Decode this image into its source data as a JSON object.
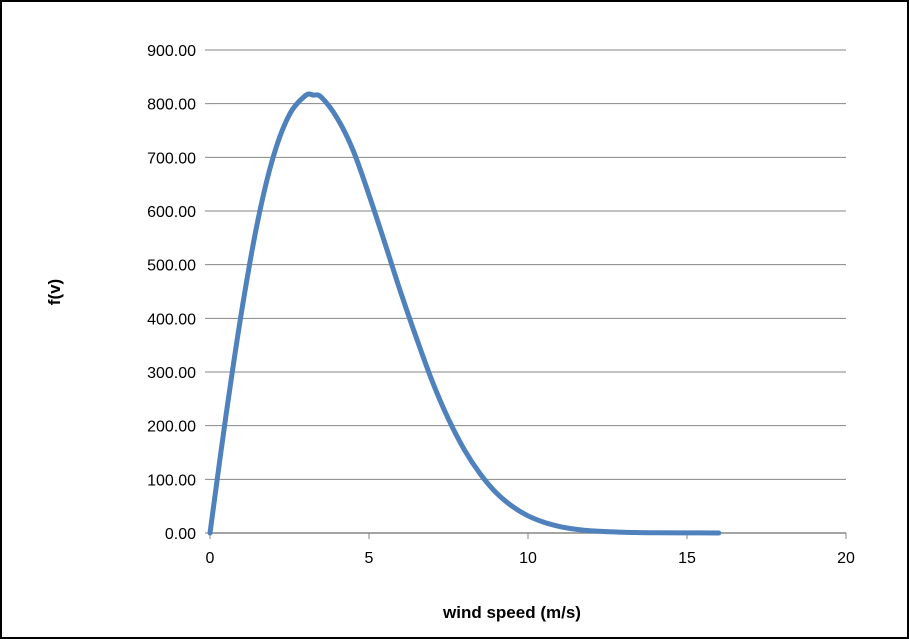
{
  "chart_data": {
    "type": "line",
    "title": "",
    "xlabel": "wind speed (m/s)",
    "ylabel": "f(v)",
    "xlim": [
      0,
      20
    ],
    "ylim": [
      0,
      900
    ],
    "x_ticks": [
      "0",
      "5",
      "10",
      "15",
      "20"
    ],
    "y_ticks": [
      "0.00",
      "100.00",
      "200.00",
      "300.00",
      "400.00",
      "500.00",
      "600.00",
      "700.00",
      "800.00",
      "900.00"
    ],
    "grid": "horizontal",
    "legend": "none",
    "series": [
      {
        "color": "#4f81bd",
        "x": [
          0,
          0.5,
          1,
          1.5,
          2,
          2.5,
          3,
          3.25,
          3.5,
          4,
          4.5,
          5,
          5.5,
          6,
          6.5,
          7,
          7.5,
          8,
          8.5,
          9,
          9.5,
          10,
          10.5,
          11,
          11.5,
          12,
          13,
          14,
          15,
          16
        ],
        "y": [
          0,
          218,
          415,
          581,
          703,
          780,
          815,
          816,
          812,
          773,
          713,
          630,
          540,
          448,
          362,
          281,
          212,
          155,
          110,
          75,
          50,
          32,
          20,
          12,
          7,
          4,
          1.5,
          0.5,
          0.2,
          0.05
        ]
      }
    ]
  },
  "colors": {
    "series": "#4f81bd",
    "grid": "#868686",
    "frame": "#000000"
  }
}
